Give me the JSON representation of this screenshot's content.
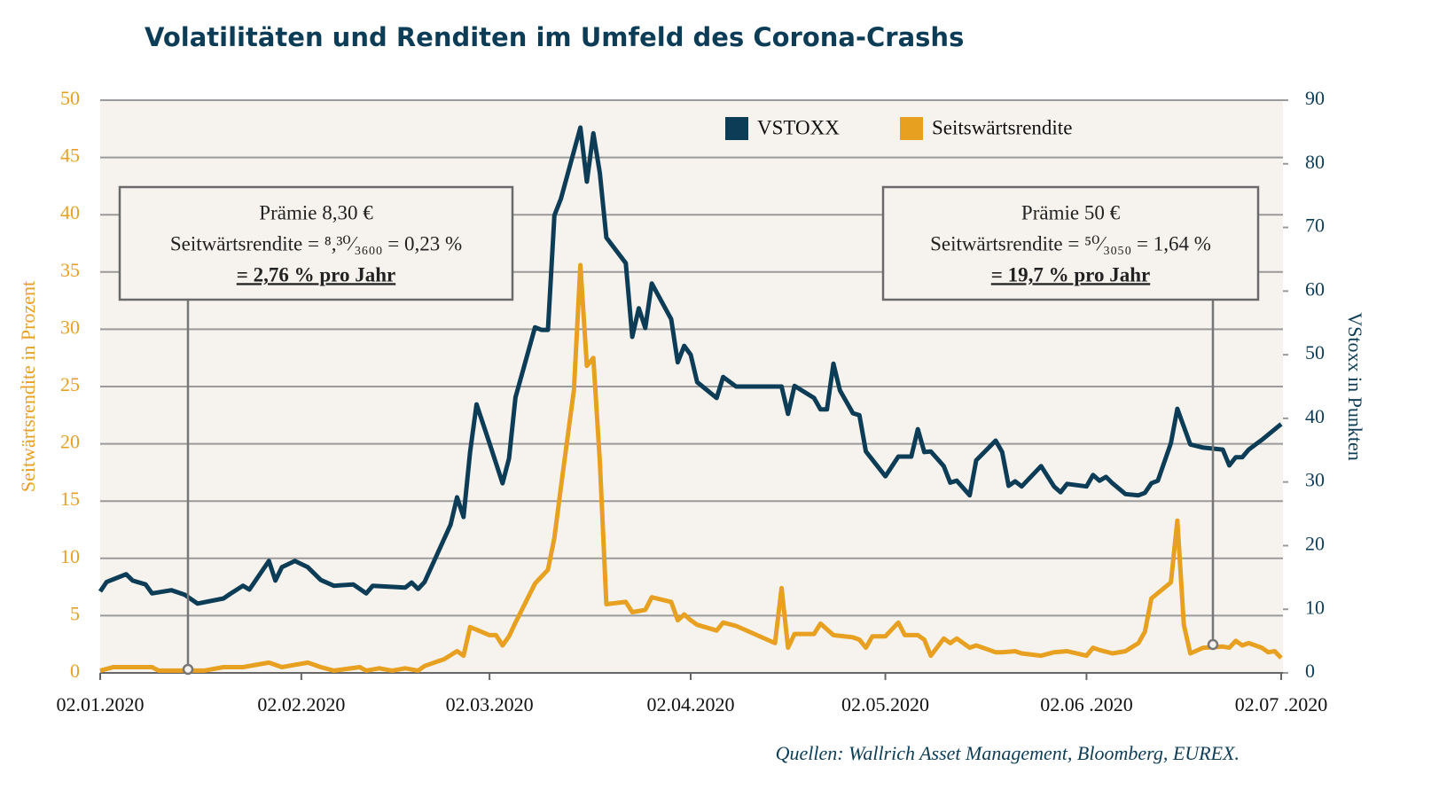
{
  "chart_data": {
    "type": "line",
    "title": "Volatilitäten und Renditen im Umfeld des Corona-Crashs",
    "ylabel": "Seitwärtsrendite in Prozent",
    "y2label": "VStoxx in Punkten",
    "source": "Quellen: Wallrich Asset Management, Bloomberg, EUREX.",
    "xlim": [
      "2020-01-02",
      "2020-07-02"
    ],
    "xticks": [
      {
        "value": "2020-01-02",
        "label": "02.01.2020"
      },
      {
        "value": "2020-02-02",
        "label": "02.02.2020"
      },
      {
        "value": "2020-03-02",
        "label": "02.03.2020"
      },
      {
        "value": "2020-04-02",
        "label": "02.04.2020"
      },
      {
        "value": "2020-05-02",
        "label": "02.05.2020"
      },
      {
        "value": "2020-06-02",
        "label": "02.06 .2020"
      },
      {
        "value": "2020-07-02",
        "label": "02.07 .2020"
      }
    ],
    "ylim": [
      0,
      50
    ],
    "yticks": [
      0,
      5,
      10,
      15,
      20,
      25,
      30,
      35,
      40,
      45,
      50
    ],
    "y2lim": [
      0,
      90
    ],
    "y2ticks": [
      0,
      10,
      20,
      30,
      40,
      50,
      60,
      70,
      80,
      90
    ],
    "grid": true,
    "legend": "top",
    "series": [
      {
        "name": "VSTOXX",
        "color": "#0d3d56",
        "axis": "y2",
        "x": [
          "2020-01-02",
          "2020-01-03",
          "2020-01-06",
          "2020-01-07",
          "2020-01-09",
          "2020-01-10",
          "2020-01-13",
          "2020-01-15",
          "2020-01-17",
          "2020-01-21",
          "2020-01-22",
          "2020-01-24",
          "2020-01-25",
          "2020-01-28",
          "2020-01-29",
          "2020-01-30",
          "2020-02-01",
          "2020-02-03",
          "2020-02-05",
          "2020-02-07",
          "2020-02-10",
          "2020-02-12",
          "2020-02-13",
          "2020-02-18",
          "2020-02-19",
          "2020-02-20",
          "2020-02-21",
          "2020-02-25",
          "2020-02-26",
          "2020-02-27",
          "2020-02-28",
          "2020-02-29",
          "2020-03-02",
          "2020-03-04",
          "2020-03-05",
          "2020-03-06",
          "2020-03-09",
          "2020-03-10",
          "2020-03-11",
          "2020-03-12",
          "2020-03-13",
          "2020-03-16",
          "2020-03-17",
          "2020-03-18",
          "2020-03-19",
          "2020-03-20",
          "2020-03-23",
          "2020-03-24",
          "2020-03-25",
          "2020-03-26",
          "2020-03-27",
          "2020-03-30",
          "2020-03-31",
          "2020-04-01",
          "2020-04-02",
          "2020-04-03",
          "2020-04-06",
          "2020-04-07",
          "2020-04-09",
          "2020-04-16",
          "2020-04-17",
          "2020-04-18",
          "2020-04-21",
          "2020-04-22",
          "2020-04-23",
          "2020-04-24",
          "2020-04-25",
          "2020-04-27",
          "2020-04-28",
          "2020-04-29",
          "2020-05-02",
          "2020-05-04",
          "2020-05-06",
          "2020-05-07",
          "2020-05-08",
          "2020-05-09",
          "2020-05-11",
          "2020-05-12",
          "2020-05-13",
          "2020-05-15",
          "2020-05-16",
          "2020-05-19",
          "2020-05-20",
          "2020-05-21",
          "2020-05-22",
          "2020-05-23",
          "2020-05-26",
          "2020-05-28",
          "2020-05-29",
          "2020-05-30",
          "2020-06-02",
          "2020-06-03",
          "2020-06-04",
          "2020-06-05",
          "2020-06-06",
          "2020-06-08",
          "2020-06-10",
          "2020-06-11",
          "2020-06-12",
          "2020-06-13",
          "2020-06-15",
          "2020-06-16",
          "2020-06-18",
          "2020-06-20",
          "2020-06-23",
          "2020-06-24",
          "2020-06-25",
          "2020-06-26",
          "2020-06-27",
          "2020-06-29",
          "2020-07-02"
        ],
        "values": [
          12.8,
          14.3,
          15.5,
          14.5,
          13.9,
          12.5,
          13.0,
          12.3,
          10.9,
          11.7,
          12.4,
          13.7,
          13.1,
          17.6,
          14.5,
          16.6,
          17.6,
          16.6,
          14.6,
          13.7,
          13.9,
          12.5,
          13.7,
          13.4,
          14.2,
          13.2,
          14.3,
          23.3,
          27.6,
          24.5,
          34.7,
          42.2,
          36.1,
          29.8,
          33.7,
          43.3,
          54.3,
          53.9,
          53.9,
          71.9,
          74.5,
          85.7,
          77.2,
          84.8,
          78.6,
          68.4,
          64.4,
          52.8,
          57.3,
          54.2,
          61.2,
          55.6,
          48.8,
          51.4,
          50.0,
          45.7,
          43.2,
          46.5,
          45.0,
          45.0,
          40.7,
          45.1,
          43.2,
          41.4,
          41.4,
          48.6,
          44.4,
          40.8,
          40.5,
          34.8,
          30.9,
          34.0,
          34.0,
          38.3,
          34.7,
          34.8,
          32.5,
          29.9,
          30.2,
          27.9,
          33.4,
          36.5,
          34.7,
          29.4,
          30.1,
          29.3,
          32.5,
          29.3,
          28.4,
          29.7,
          29.3,
          31.1,
          30.2,
          30.8,
          29.8,
          28.1,
          27.9,
          28.3,
          29.8,
          30.2,
          36.1,
          41.5,
          35.9,
          35.4,
          35.1,
          32.6,
          33.9,
          33.9,
          35.1,
          36.6,
          39.1
        ]
      },
      {
        "name": "Seitswärtsrendite",
        "color": "#e8a020",
        "axis": "y",
        "x": [
          "2020-01-02",
          "2020-01-04",
          "2020-01-10",
          "2020-01-11",
          "2020-01-16",
          "2020-01-18",
          "2020-01-21",
          "2020-01-24",
          "2020-01-28",
          "2020-01-30",
          "2020-01-31",
          "2020-02-03",
          "2020-02-05",
          "2020-02-07",
          "2020-02-11",
          "2020-02-12",
          "2020-02-14",
          "2020-02-16",
          "2020-02-18",
          "2020-02-20",
          "2020-02-21",
          "2020-02-24",
          "2020-02-26",
          "2020-02-27",
          "2020-02-28",
          "2020-03-02",
          "2020-03-03",
          "2020-03-04",
          "2020-03-05",
          "2020-03-06",
          "2020-03-09",
          "2020-03-11",
          "2020-03-12",
          "2020-03-13",
          "2020-03-15",
          "2020-03-16",
          "2020-03-17",
          "2020-03-18",
          "2020-03-19",
          "2020-03-20",
          "2020-03-23",
          "2020-03-24",
          "2020-03-26",
          "2020-03-27",
          "2020-03-30",
          "2020-03-31",
          "2020-04-01",
          "2020-04-02",
          "2020-04-03",
          "2020-04-06",
          "2020-04-07",
          "2020-04-09",
          "2020-04-15",
          "2020-04-16",
          "2020-04-17",
          "2020-04-18",
          "2020-04-21",
          "2020-04-22",
          "2020-04-23",
          "2020-04-24",
          "2020-04-27",
          "2020-04-28",
          "2020-04-29",
          "2020-04-30",
          "2020-05-02",
          "2020-05-04",
          "2020-05-05",
          "2020-05-07",
          "2020-05-08",
          "2020-05-09",
          "2020-05-11",
          "2020-05-12",
          "2020-05-13",
          "2020-05-15",
          "2020-05-16",
          "2020-05-19",
          "2020-05-20",
          "2020-05-22",
          "2020-05-23",
          "2020-05-26",
          "2020-05-28",
          "2020-05-30",
          "2020-06-02",
          "2020-06-03",
          "2020-06-04",
          "2020-06-06",
          "2020-06-08",
          "2020-06-10",
          "2020-06-11",
          "2020-06-12",
          "2020-06-15",
          "2020-06-16",
          "2020-06-17",
          "2020-06-18",
          "2020-06-20",
          "2020-06-23",
          "2020-06-24",
          "2020-06-25",
          "2020-06-26",
          "2020-06-27",
          "2020-06-29",
          "2020-06-30",
          "2020-07-01",
          "2020-07-02"
        ],
        "values": [
          0.2,
          0.5,
          0.5,
          0.2,
          0.2,
          0.2,
          0.5,
          0.5,
          0.9,
          0.5,
          0.6,
          0.9,
          0.5,
          0.2,
          0.5,
          0.2,
          0.4,
          0.2,
          0.4,
          0.2,
          0.6,
          1.2,
          1.9,
          1.5,
          4.0,
          3.3,
          3.3,
          2.4,
          3.2,
          4.4,
          7.8,
          9.0,
          11.8,
          16.2,
          24.7,
          35.6,
          26.8,
          27.5,
          18.5,
          6.0,
          6.2,
          5.3,
          5.5,
          6.6,
          6.2,
          4.6,
          5.1,
          4.6,
          4.2,
          3.7,
          4.4,
          4.1,
          2.6,
          7.4,
          2.2,
          3.4,
          3.4,
          4.3,
          3.8,
          3.3,
          3.1,
          2.9,
          2.2,
          3.2,
          3.2,
          4.4,
          3.3,
          3.3,
          2.9,
          1.5,
          3.0,
          2.6,
          3.0,
          2.2,
          2.4,
          1.8,
          1.8,
          1.9,
          1.7,
          1.5,
          1.8,
          1.9,
          1.5,
          2.2,
          2.0,
          1.7,
          1.9,
          2.6,
          3.6,
          6.5,
          7.9,
          13.3,
          4.2,
          1.7,
          2.2,
          2.3,
          2.2,
          2.8,
          2.4,
          2.6,
          2.2,
          1.8,
          1.9,
          1.3
        ]
      }
    ],
    "annotations": [
      {
        "lines": [
          "Prämie 8,30 €",
          "Seitwärtsrendite = ⁸,³⁰⁄₃₆₀₀ = 0,23 %",
          "= 2,76 % pro Jahr"
        ]
      },
      {
        "lines": [
          "Prämie 50 €",
          "Seitwärtsrendite = ⁵⁰⁄₃₀₅₀ = 1,64 %",
          "= 19,7 % pro Jahr"
        ]
      }
    ]
  }
}
